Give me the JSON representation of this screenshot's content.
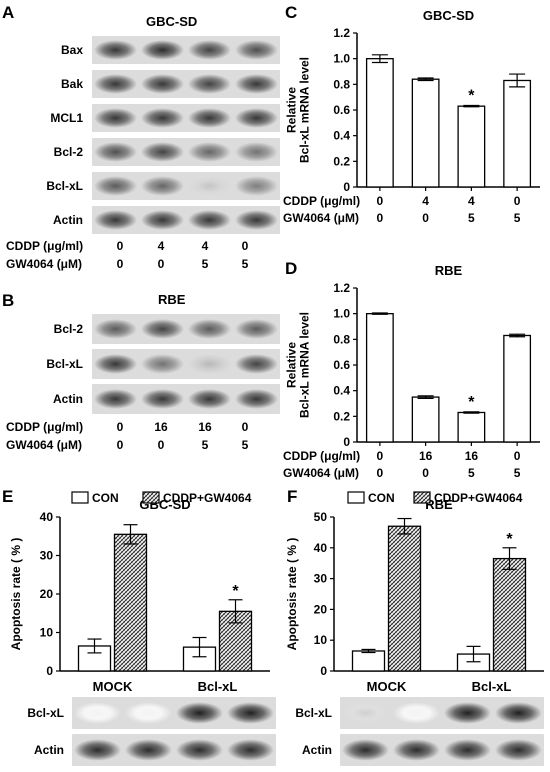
{
  "panels": {
    "A": {
      "letter": "A",
      "title": "GBC-SD",
      "rows": [
        {
          "label": "Bax",
          "intensities": [
            0.85,
            0.9,
            0.8,
            0.75
          ]
        },
        {
          "label": "Bak",
          "intensities": [
            0.85,
            0.85,
            0.8,
            0.85
          ]
        },
        {
          "label": "MCL1",
          "intensities": [
            0.85,
            0.85,
            0.85,
            0.85
          ]
        },
        {
          "label": "Bcl-2",
          "intensities": [
            0.75,
            0.8,
            0.65,
            0.6
          ]
        },
        {
          "label": "Bcl-xL",
          "intensities": [
            0.7,
            0.65,
            0.25,
            0.55
          ]
        },
        {
          "label": "Actin",
          "intensities": [
            0.85,
            0.85,
            0.85,
            0.85
          ]
        }
      ],
      "conditions": [
        {
          "label": "CDDP (μg/ml)",
          "values": [
            "0",
            "4",
            "4",
            "0"
          ]
        },
        {
          "label": "GW4064 (μM)",
          "values": [
            "0",
            "0",
            "5",
            "5"
          ]
        }
      ]
    },
    "B": {
      "letter": "B",
      "title": "RBE",
      "rows": [
        {
          "label": "Bcl-2",
          "intensities": [
            0.7,
            0.8,
            0.7,
            0.7
          ]
        },
        {
          "label": "Bcl-xL",
          "intensities": [
            0.85,
            0.6,
            0.3,
            0.8
          ]
        },
        {
          "label": "Actin",
          "intensities": [
            0.85,
            0.85,
            0.85,
            0.85
          ]
        }
      ],
      "conditions": [
        {
          "label": "CDDP (μg/ml)",
          "values": [
            "0",
            "16",
            "16",
            "0"
          ]
        },
        {
          "label": "GW4064 (μM)",
          "values": [
            "0",
            "0",
            "5",
            "5"
          ]
        }
      ]
    },
    "E_blot": {
      "rows": [
        {
          "label": "Bcl-xL",
          "intensities": [
            0.05,
            0.05,
            0.95,
            0.95
          ]
        },
        {
          "label": "Actin",
          "intensities": [
            0.9,
            0.9,
            0.9,
            0.9
          ]
        }
      ]
    },
    "F_blot": {
      "rows": [
        {
          "label": "Bcl-xL",
          "intensities": [
            0.2,
            0.05,
            0.95,
            0.95
          ]
        },
        {
          "label": "Actin",
          "intensities": [
            0.9,
            0.9,
            0.9,
            0.9
          ]
        }
      ]
    }
  },
  "chart_data": [
    {
      "panel": "C",
      "type": "bar",
      "title": "GBC-SD",
      "ylabel": "Relative\nBcl-xL mRNA level",
      "ylim": [
        0,
        1.2
      ],
      "yticks": [
        "0",
        "0.2",
        "0.4",
        "0.6",
        "0.8",
        "1.0",
        "1.2"
      ],
      "values": [
        1.0,
        0.84,
        0.63,
        0.83
      ],
      "errors": [
        0.03,
        0.01,
        0.005,
        0.05
      ],
      "significance": [
        "",
        "",
        "*",
        ""
      ],
      "conditions": [
        {
          "label": "CDDP (μg/ml)",
          "values": [
            "0",
            "4",
            "4",
            "0"
          ]
        },
        {
          "label": "GW4064 (μM)",
          "values": [
            "0",
            "0",
            "5",
            "5"
          ]
        }
      ]
    },
    {
      "panel": "D",
      "type": "bar",
      "title": "RBE",
      "ylabel": "Relative\nBcl-xL mRNA level",
      "ylim": [
        0,
        1.2
      ],
      "yticks": [
        "0",
        "0.2",
        "0.4",
        "0.6",
        "0.8",
        "1.0",
        "1.2"
      ],
      "values": [
        1.0,
        0.35,
        0.23,
        0.83
      ],
      "errors": [
        0.005,
        0.01,
        0.005,
        0.01
      ],
      "significance": [
        "",
        "",
        "*",
        ""
      ],
      "conditions": [
        {
          "label": "CDDP (μg/ml)",
          "values": [
            "0",
            "16",
            "16",
            "0"
          ]
        },
        {
          "label": "GW4064 (μM)",
          "values": [
            "0",
            "0",
            "5",
            "5"
          ]
        }
      ]
    },
    {
      "panel": "E",
      "type": "bar",
      "title": "GBC-SD",
      "ylabel": "Apoptosis rate ( % )",
      "ylim": [
        0,
        40
      ],
      "yticks": [
        "0",
        "10",
        "20",
        "30",
        "40"
      ],
      "categories": [
        "MOCK",
        "Bcl-xL"
      ],
      "series": [
        {
          "name": "CON",
          "values": [
            6.5,
            6.2
          ],
          "errors": [
            1.8,
            2.5
          ]
        },
        {
          "name": "CDDP+GW4064",
          "values": [
            35.5,
            15.5
          ],
          "errors": [
            2.5,
            3.0
          ]
        }
      ],
      "significance": [
        [
          "",
          ""
        ],
        [
          "",
          "*"
        ]
      ]
    },
    {
      "panel": "F",
      "type": "bar",
      "title": "RBE",
      "ylabel": "Apoptosis rate ( % )",
      "ylim": [
        0,
        50
      ],
      "yticks": [
        "0",
        "10",
        "20",
        "30",
        "40",
        "50"
      ],
      "categories": [
        "MOCK",
        "Bcl-xL"
      ],
      "series": [
        {
          "name": "CON",
          "values": [
            6.5,
            5.5
          ],
          "errors": [
            0.5,
            2.5
          ]
        },
        {
          "name": "CDDP+GW4064",
          "values": [
            47.0,
            36.5
          ],
          "errors": [
            2.5,
            3.5
          ]
        }
      ],
      "significance": [
        [
          "",
          ""
        ],
        [
          "",
          "*"
        ]
      ]
    }
  ],
  "letters": {
    "C": "C",
    "D": "D",
    "E": "E",
    "F": "F"
  }
}
